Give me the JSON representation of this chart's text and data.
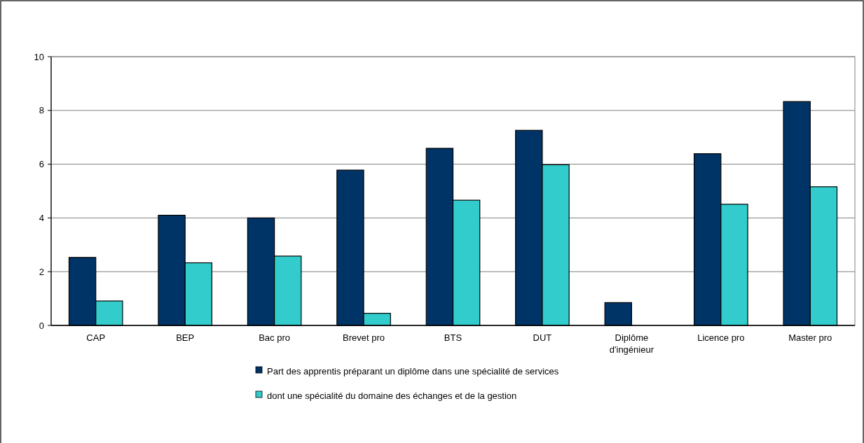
{
  "chart_data": {
    "type": "bar",
    "categories": [
      "CAP",
      "BEP",
      "Bac pro",
      "Brevet pro",
      "BTS",
      "DUT",
      "Diplôme d'ingénieur",
      "Licence pro",
      "Master pro"
    ],
    "series": [
      {
        "name": "Part des apprentis préparant un diplôme dans une spécialité de services",
        "color": "#003366",
        "values": [
          2.53,
          4.1,
          4.0,
          5.78,
          6.59,
          7.26,
          0.85,
          6.39,
          8.33
        ]
      },
      {
        "name": "dont une spécialité du domaine des échanges et de la gestion",
        "color": "#33cccc",
        "values": [
          0.91,
          2.33,
          2.58,
          0.45,
          4.66,
          5.98,
          null,
          4.51,
          5.16
        ]
      }
    ],
    "ylim": [
      0,
      10
    ],
    "yticks": [
      0,
      2,
      4,
      6,
      8,
      10
    ],
    "grid": "y",
    "legend": "bottom"
  }
}
